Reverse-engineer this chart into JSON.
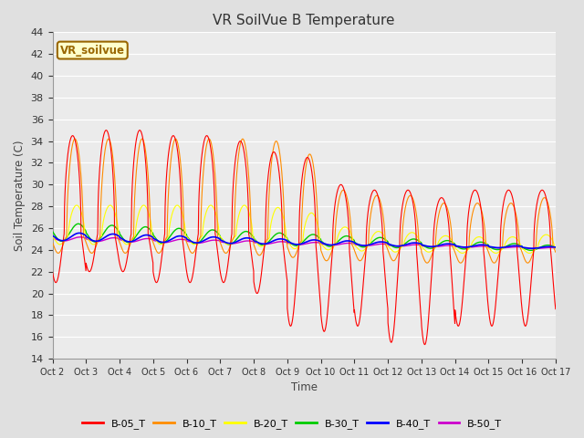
{
  "title": "VR SoilVue B Temperature",
  "ylabel": "Soil Temperature (C)",
  "xlabel": "Time",
  "ylim": [
    14,
    44
  ],
  "yticks": [
    14,
    16,
    18,
    20,
    22,
    24,
    26,
    28,
    30,
    32,
    34,
    36,
    38,
    40,
    42,
    44
  ],
  "xtick_labels": [
    "Oct 2",
    "Oct 3",
    "Oct 4",
    "Oct 5",
    "Oct 6",
    "Oct 7",
    "Oct 8",
    "Oct 9",
    "Oct 10",
    "Oct 11",
    "Oct 12",
    "Oct 13",
    "Oct 14",
    "Oct 15",
    "Oct 16",
    "Oct 17"
  ],
  "series_colors": {
    "B-05_T": "#ff0000",
    "B-10_T": "#ff8c00",
    "B-20_T": "#ffff00",
    "B-30_T": "#00cc00",
    "B-40_T": "#0000ff",
    "B-50_T": "#cc00cc"
  },
  "watermark_text": "VR_soilvue",
  "watermark_bg": "#ffffcc",
  "watermark_border": "#996600",
  "bg_color": "#e0e0e0",
  "plot_bg": "#ebebeb",
  "grid_color": "#ffffff",
  "title_color": "#333333",
  "num_days": 15,
  "ppd": 240
}
